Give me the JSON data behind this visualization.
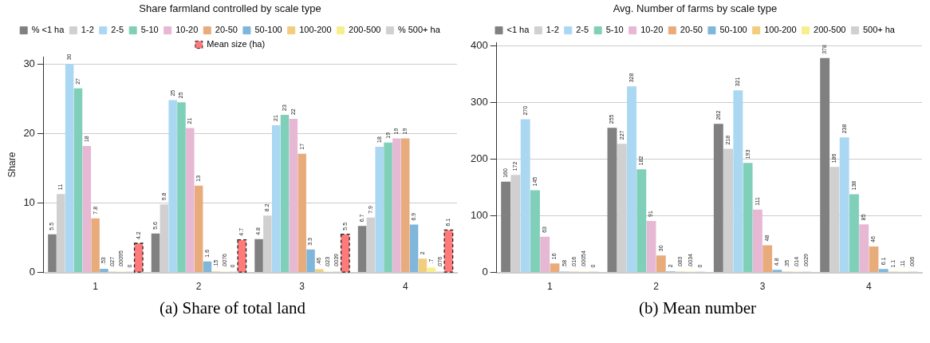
{
  "chart_data": [
    {
      "type": "bar",
      "title": "Share farmland controlled by scale type",
      "ylabel": "Share",
      "categories": [
        "1",
        "2",
        "3",
        "4"
      ],
      "ylim": [
        0,
        31
      ],
      "yticks": [
        0,
        10,
        20,
        30
      ],
      "grid": "y",
      "legend": "top",
      "annotations": [
        "(a) Share of total land"
      ],
      "series": [
        {
          "name": "% <1 ha",
          "color": "#808080",
          "values": [
            5.5,
            5.6,
            4.8,
            6.7
          ],
          "value_labels": [
            "5.5",
            "5.6",
            "4.8",
            "6.7"
          ]
        },
        {
          "name": "1-2",
          "color": "#d0d0d0",
          "values": [
            11.3,
            9.8,
            8.2,
            7.9
          ],
          "value_labels": [
            "11",
            "9.8",
            "8.2",
            "7.9"
          ]
        },
        {
          "name": "2-5",
          "color": "#aad8f2",
          "values": [
            30,
            24.8,
            21.2,
            18.1
          ],
          "value_labels": [
            "30",
            "25",
            "21",
            "18"
          ]
        },
        {
          "name": "5-10",
          "color": "#80cfb8",
          "values": [
            26.5,
            24.5,
            22.7,
            18.7
          ],
          "value_labels": [
            "27",
            "25",
            "23",
            "19"
          ]
        },
        {
          "name": "10-20",
          "color": "#e6b8d4",
          "values": [
            18.2,
            20.8,
            22.1,
            19.3
          ],
          "value_labels": [
            "18",
            "21",
            "22",
            "19"
          ]
        },
        {
          "name": "20-50",
          "color": "#e8ac7c",
          "values": [
            7.8,
            12.5,
            17.1,
            19.3
          ],
          "value_labels": [
            "7.8",
            "13",
            "17",
            "19"
          ]
        },
        {
          "name": "50-100",
          "color": "#7fb6d9",
          "values": [
            0.53,
            1.6,
            3.3,
            6.9
          ],
          "value_labels": [
            ".53",
            "1.6",
            "3.3",
            "6.9"
          ]
        },
        {
          "name": "100-200",
          "color": "#f2cd7c",
          "values": [
            0.027,
            0.15,
            0.46,
            2
          ],
          "value_labels": [
            ".027",
            ".15",
            ".46",
            "2"
          ]
        },
        {
          "name": "200-500",
          "color": "#f7ee8c",
          "values": [
            0.00095,
            0.0076,
            0.023,
            0.7
          ],
          "value_labels": [
            ".00095",
            ".0076",
            ".023",
            ".7"
          ]
        },
        {
          "name": "% 500+ ha",
          "color": "#d0d0d0",
          "values": [
            0,
            0,
            0.0039,
            0.076
          ],
          "value_labels": [
            "0",
            "0",
            ".0039",
            ".076"
          ]
        },
        {
          "name": "Mean size (ha)",
          "color": "#ff7b7b",
          "line_style": "dashed",
          "values": [
            4.2,
            4.7,
            5.5,
            6.1
          ],
          "value_labels": [
            "4.2",
            "4.7",
            "5.5",
            "6.1"
          ]
        }
      ]
    },
    {
      "type": "bar",
      "title": "Avg. Number of farms by scale type",
      "categories": [
        "1",
        "2",
        "3",
        "4"
      ],
      "ylim": [
        0,
        405
      ],
      "yticks": [
        0,
        100,
        200,
        300,
        400
      ],
      "grid": "y",
      "legend": "top",
      "annotations": [
        "(b) Mean number"
      ],
      "series": [
        {
          "name": "<1 ha",
          "color": "#808080",
          "values": [
            160,
            255,
            262,
            378
          ],
          "value_labels": [
            "160",
            "255",
            "262",
            "378"
          ]
        },
        {
          "name": "1-2",
          "color": "#d0d0d0",
          "values": [
            172,
            227,
            218,
            186
          ],
          "value_labels": [
            "172",
            "227",
            "218",
            "186"
          ]
        },
        {
          "name": "2-5",
          "color": "#aad8f2",
          "values": [
            270,
            328,
            321,
            238
          ],
          "value_labels": [
            "270",
            "328",
            "321",
            "238"
          ]
        },
        {
          "name": "5-10",
          "color": "#80cfb8",
          "values": [
            145,
            182,
            193,
            138
          ],
          "value_labels": [
            "145",
            "182",
            "193",
            "138"
          ]
        },
        {
          "name": "10-20",
          "color": "#e6b8d4",
          "values": [
            63,
            91,
            111,
            85
          ],
          "value_labels": [
            "63",
            "91",
            "111",
            "85"
          ]
        },
        {
          "name": "20-50",
          "color": "#e8ac7c",
          "values": [
            16,
            30,
            48,
            46
          ],
          "value_labels": [
            "16",
            "30",
            "48",
            "46"
          ]
        },
        {
          "name": "50-100",
          "color": "#7fb6d9",
          "values": [
            0.58,
            2,
            4.8,
            6.1
          ],
          "value_labels": [
            ".58",
            "2",
            "4.8",
            "6.1"
          ]
        },
        {
          "name": "100-200",
          "color": "#f2cd7c",
          "values": [
            0.016,
            0.083,
            0.35,
            1.1
          ],
          "value_labels": [
            ".016",
            ".083",
            ".35",
            "1.1"
          ]
        },
        {
          "name": "200-500",
          "color": "#f7ee8c",
          "values": [
            0.00054,
            0.0034,
            0.014,
            0.11
          ],
          "value_labels": [
            ".00054",
            ".0034",
            ".014",
            ".11"
          ]
        },
        {
          "name": "500+ ha",
          "color": "#d0d0d0",
          "values": [
            0,
            0,
            0.0029,
            0.006
          ],
          "value_labels": [
            "0",
            "0",
            ".0029",
            ".006"
          ]
        }
      ]
    }
  ]
}
